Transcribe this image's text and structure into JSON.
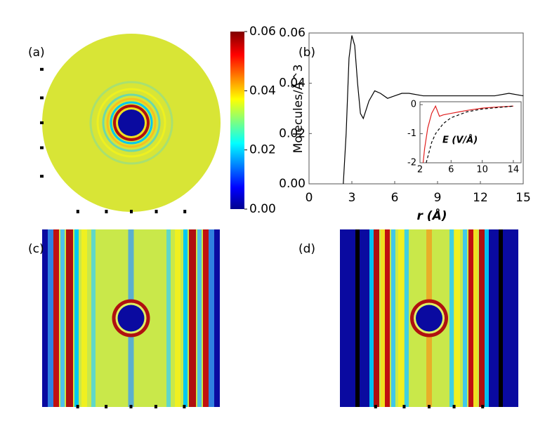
{
  "chart_data": [
    {
      "type": "heatmap",
      "panel": "(a)",
      "shape": "disk",
      "clim": [
        0,
        0.06
      ],
      "cticks": [
        {
          "value": 0,
          "label": "0.00"
        },
        {
          "value": 0.02,
          "label": "0.02"
        },
        {
          "value": 0.04,
          "label": "0.04"
        },
        {
          "value": 0.06,
          "label": "0.06"
        }
      ]
    },
    {
      "type": "line",
      "panel": "(b)",
      "xlabel": "r (Å)",
      "ylabel": "Molecules/Å^3",
      "xlim": [
        0,
        15
      ],
      "xticks": [
        0,
        3,
        6,
        9,
        12,
        15
      ],
      "ylim": [
        0,
        0.06
      ],
      "yticks": [
        {
          "value": 0,
          "label": "0.00"
        },
        {
          "value": 0.02,
          "label": "0.02"
        },
        {
          "value": 0.04,
          "label": "0.04"
        },
        {
          "value": 0.06,
          "label": "0.06"
        }
      ],
      "series": [
        {
          "color": "#000000",
          "x": [
            2.4,
            2.6,
            2.8,
            3.0,
            3.2,
            3.4,
            3.6,
            3.8,
            4.2,
            4.6,
            5.0,
            5.5,
            6.0,
            6.5,
            7,
            8,
            9,
            10,
            11,
            12,
            13,
            14,
            15
          ],
          "values": [
            0,
            0.02,
            0.05,
            0.059,
            0.055,
            0.04,
            0.028,
            0.026,
            0.033,
            0.037,
            0.036,
            0.034,
            0.035,
            0.036,
            0.036,
            0.035,
            0.035,
            0.035,
            0.035,
            0.035,
            0.035,
            0.036,
            0.035
          ]
        }
      ],
      "inset": {
        "ylabel": "E (V/Å)",
        "xlim": [
          2,
          15
        ],
        "xticks": [
          2,
          6,
          10,
          14
        ],
        "ylim": [
          -2,
          0.1
        ],
        "yticks": [
          0,
          -1,
          -2
        ],
        "series": [
          {
            "color": "#e02020",
            "dashed": false,
            "x": [
              2.4,
              2.6,
              3,
              3.5,
              4,
              4.5,
              5,
              6,
              7,
              8,
              10,
              12,
              14
            ],
            "values": [
              -2,
              -1.5,
              -0.8,
              -0.3,
              -0.05,
              -0.4,
              -0.35,
              -0.3,
              -0.25,
              -0.2,
              -0.12,
              -0.08,
              -0.05
            ]
          },
          {
            "color": "#000000",
            "dashed": true,
            "x": [
              2.8,
              3.5,
              4,
              5,
              6,
              8,
              10,
              12,
              14
            ],
            "values": [
              -2,
              -1.3,
              -1.0,
              -0.65,
              -0.45,
              -0.25,
              -0.15,
              -0.1,
              -0.05
            ]
          }
        ]
      }
    },
    {
      "type": "heatmap",
      "panel": "(c)",
      "shape": "slab"
    },
    {
      "type": "heatmap",
      "panel": "(d)",
      "shape": "slab"
    }
  ]
}
